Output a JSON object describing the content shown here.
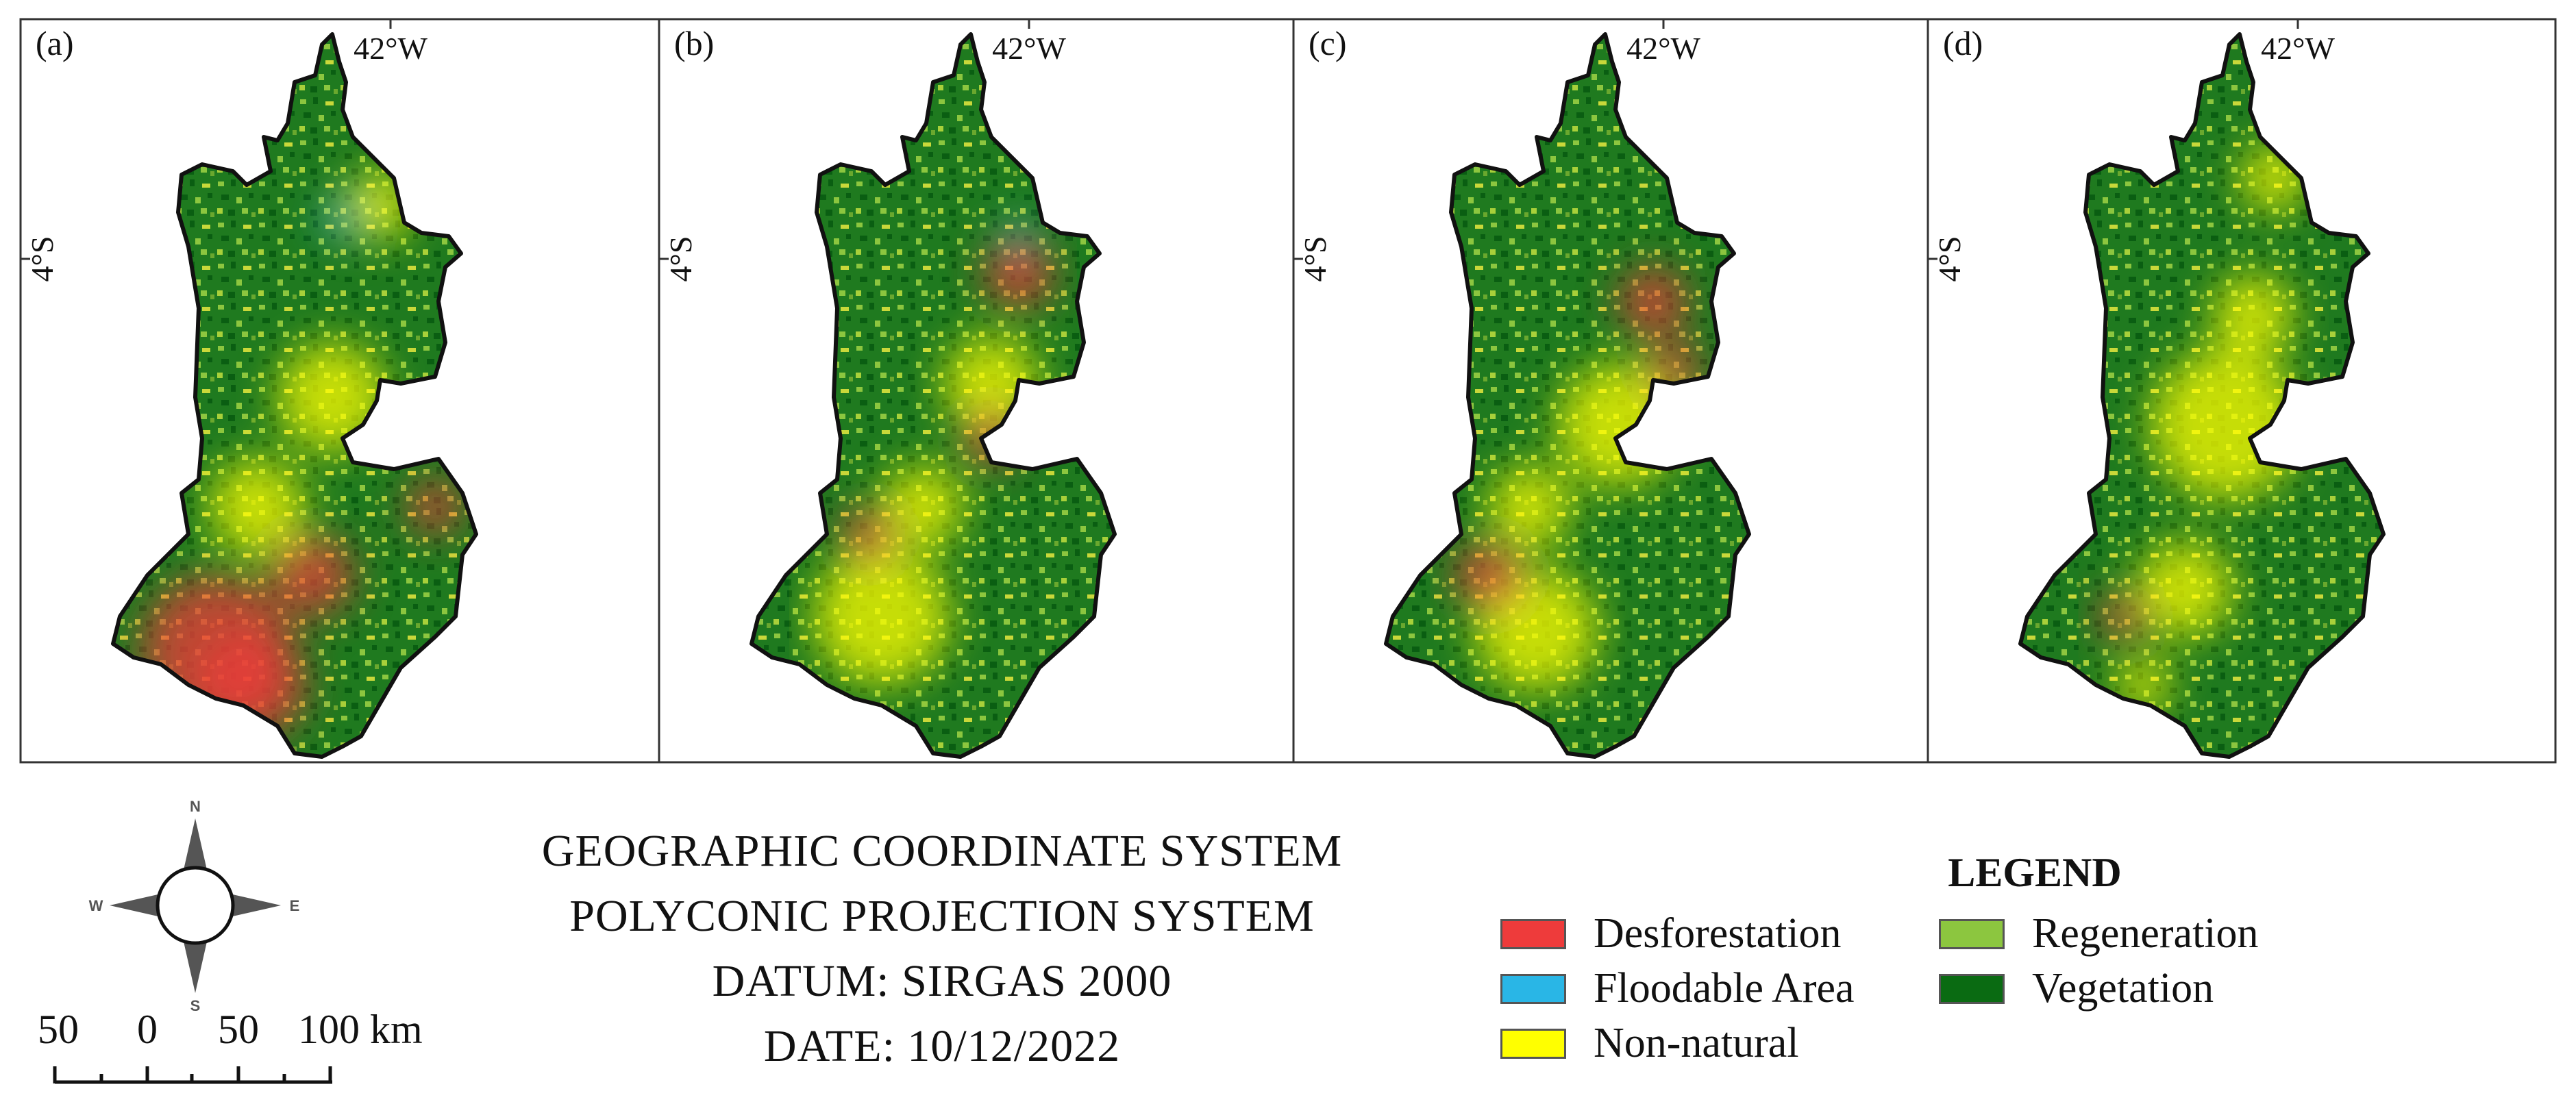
{
  "panels": [
    {
      "label": "(a)",
      "lon_label": "42°W",
      "lat_label": "4°S"
    },
    {
      "label": "(b)",
      "lon_label": "42°W",
      "lat_label": "4°S"
    },
    {
      "label": "(c)",
      "lon_label": "42°W",
      "lat_label": "4°S"
    },
    {
      "label": "(d)",
      "lon_label": "42°W",
      "lat_label": "4°S"
    }
  ],
  "compass": {
    "n": "N",
    "s": "S",
    "e": "E",
    "w": "W"
  },
  "scale_bar": {
    "labels": [
      "50",
      "0",
      "50",
      "100 km"
    ]
  },
  "projection_info": [
    "GEOGRAPHIC COORDINATE SYSTEM",
    "POLYCONIC PROJECTION SYSTEM",
    "DATUM: SIRGAS 2000",
    "DATE: 10/12/2022"
  ],
  "legend": {
    "title": "LEGEND",
    "items": [
      {
        "label": "Desforestation",
        "color": "#ee3b3b"
      },
      {
        "label": "Floodable Area",
        "color": "#29b6e6"
      },
      {
        "label": "Non-natural",
        "color": "#ffff00"
      },
      {
        "label": "Regeneration",
        "color": "#8cc63f"
      },
      {
        "label": "Vegetation",
        "color": "#0a6b12"
      }
    ]
  }
}
